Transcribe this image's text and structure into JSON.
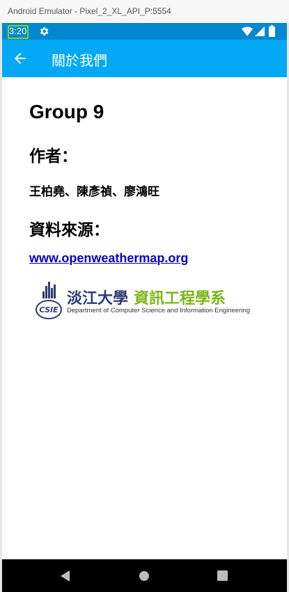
{
  "window": {
    "title": "Android Emulator - Pixel_2_XL_API_P:5554"
  },
  "status_bar": {
    "time": "3:20",
    "icons": [
      "gear-icon",
      "wifi-icon",
      "signal-icon",
      "battery-icon"
    ]
  },
  "app_bar": {
    "back_icon": "arrow-left-icon",
    "title": "關於我們"
  },
  "content": {
    "heading": "Group 9",
    "authors_label": "作者：",
    "authors": "王柏堯、陳彥禎、廖鴻旺",
    "source_label": "資料來源：",
    "source_link": "www.openweathermap.org"
  },
  "logo": {
    "name_a": "淡江大學",
    "name_b": "資訊工程學系",
    "english": "Department of Computer Science and Information Engineering",
    "mark_text": "CSIE"
  },
  "nav_bar": {
    "icons": [
      "nav-back-icon",
      "nav-home-icon",
      "nav-recents-icon"
    ]
  },
  "colors": {
    "status_bar": "#0288d1",
    "app_bar": "#03a9f4",
    "link": "#0000cc",
    "logo_blue": "#2f3b73",
    "logo_green": "#7cb518"
  }
}
